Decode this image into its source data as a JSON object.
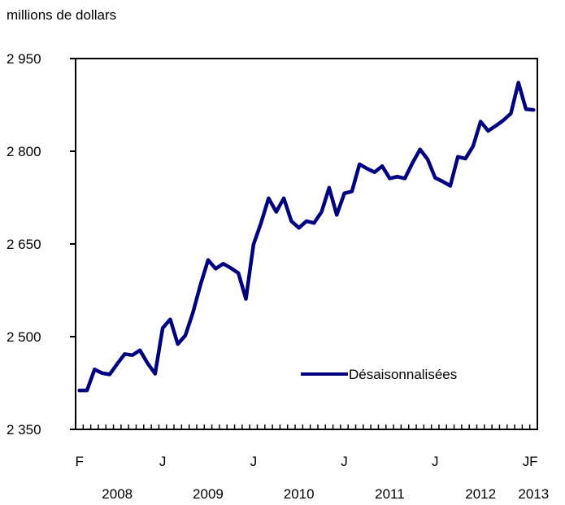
{
  "chart_data": {
    "type": "line",
    "ylabel": "millions de dollars",
    "ylim": [
      2350,
      2950
    ],
    "yticks": [
      2350,
      2500,
      2650,
      2800,
      2950
    ],
    "ytick_labels": [
      "2 350",
      "2 500",
      "2 650",
      "2 800",
      "2 950"
    ],
    "grid": false,
    "legend_position": "lower-right",
    "month_tick_labels": [
      {
        "month": "2008-02",
        "label": "F"
      },
      {
        "month": "2009-01",
        "label": "J"
      },
      {
        "month": "2010-01",
        "label": "J"
      },
      {
        "month": "2011-01",
        "label": "J"
      },
      {
        "month": "2012-01",
        "label": "J"
      },
      {
        "month": "2013-01",
        "label": "J"
      },
      {
        "month": "2013-02",
        "label": "F"
      }
    ],
    "year_labels": [
      {
        "month": "2008-07",
        "label": "2008"
      },
      {
        "month": "2009-07",
        "label": "2009"
      },
      {
        "month": "2010-07",
        "label": "2010"
      },
      {
        "month": "2011-07",
        "label": "2011"
      },
      {
        "month": "2012-07",
        "label": "2012"
      },
      {
        "month": "2013-02",
        "label": "2013"
      }
    ],
    "x_months": [
      "2008-02",
      "2008-03",
      "2008-04",
      "2008-05",
      "2008-06",
      "2008-07",
      "2008-08",
      "2008-09",
      "2008-10",
      "2008-11",
      "2008-12",
      "2009-01",
      "2009-02",
      "2009-03",
      "2009-04",
      "2009-05",
      "2009-06",
      "2009-07",
      "2009-08",
      "2009-09",
      "2009-10",
      "2009-11",
      "2009-12",
      "2010-01",
      "2010-02",
      "2010-03",
      "2010-04",
      "2010-05",
      "2010-06",
      "2010-07",
      "2010-08",
      "2010-09",
      "2010-10",
      "2010-11",
      "2010-12",
      "2011-01",
      "2011-02",
      "2011-03",
      "2011-04",
      "2011-05",
      "2011-06",
      "2011-07",
      "2011-08",
      "2011-09",
      "2011-10",
      "2011-11",
      "2011-12",
      "2012-01",
      "2012-02",
      "2012-03",
      "2012-04",
      "2012-05",
      "2012-06",
      "2012-07",
      "2012-08",
      "2012-09",
      "2012-10",
      "2012-11",
      "2012-12",
      "2013-01",
      "2013-02"
    ],
    "series": [
      {
        "name": "Désaisonnalisées",
        "color": "#000080",
        "values": [
          2413,
          2413,
          2447,
          2441,
          2439,
          2456,
          2472,
          2470,
          2478,
          2457,
          2440,
          2514,
          2528,
          2488,
          2502,
          2539,
          2584,
          2624,
          2610,
          2618,
          2611,
          2603,
          2561,
          2649,
          2684,
          2724,
          2702,
          2724,
          2687,
          2676,
          2687,
          2684,
          2702,
          2741,
          2697,
          2732,
          2735,
          2779,
          2772,
          2766,
          2776,
          2756,
          2759,
          2756,
          2781,
          2803,
          2787,
          2757,
          2751,
          2744,
          2791,
          2788,
          2808,
          2848,
          2833,
          2841,
          2850,
          2861,
          2911,
          2868,
          2867
        ]
      }
    ]
  }
}
